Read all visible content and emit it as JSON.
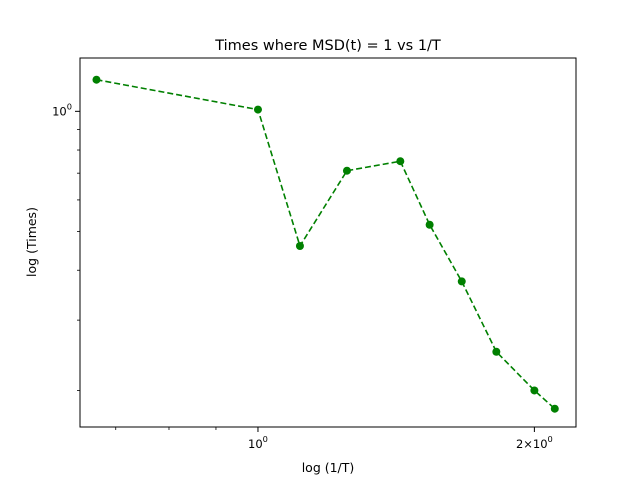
{
  "chart_data": {
    "type": "line",
    "title": "Times where MSD(t) = 1 vs 1/T",
    "xlabel": "log (1/T)",
    "ylabel": "log (Times)",
    "xscale": "log",
    "yscale": "log",
    "xlim": [
      0.64,
      2.22
    ],
    "ylim": [
      0.162,
      1.36
    ],
    "grid": false,
    "line_style": "dashed",
    "marker": "circle",
    "color": "#008000",
    "x_tick_labels": [
      {
        "value": 1.0,
        "label": "10^0"
      },
      {
        "value": 2.0,
        "label": "2×10^0"
      }
    ],
    "y_tick_labels": [
      {
        "value": 1.0,
        "label": "10^0"
      }
    ],
    "x_minor_ticks": [
      0.7,
      0.8,
      0.9
    ],
    "y_minor_ticks": [
      0.2,
      0.3,
      0.4,
      0.5,
      0.6,
      0.7,
      0.8,
      0.9
    ],
    "series": [
      {
        "x": [
          0.667,
          1.0,
          1.111,
          1.25,
          1.429,
          1.538,
          1.667,
          1.818,
          2.0,
          2.105
        ],
        "y": [
          1.2,
          1.01,
          0.46,
          0.71,
          0.75,
          0.52,
          0.375,
          0.25,
          0.2,
          0.18
        ]
      }
    ]
  }
}
